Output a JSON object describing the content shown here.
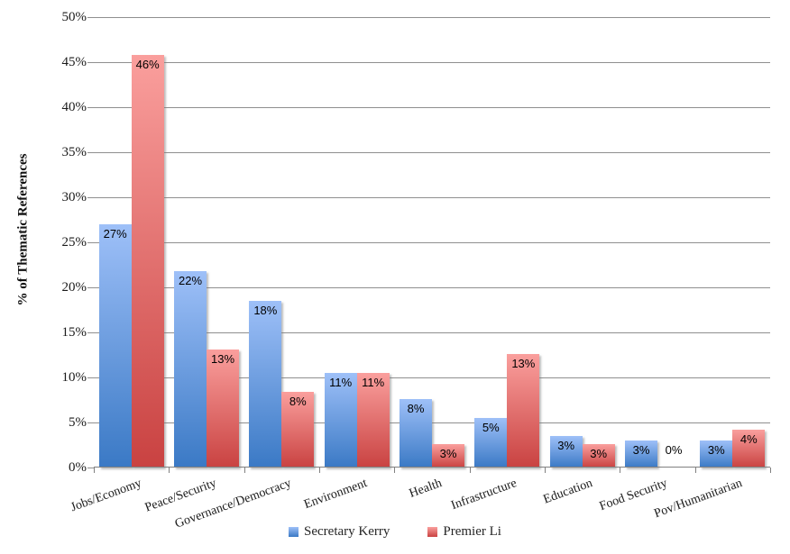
{
  "chart_data": {
    "type": "bar",
    "title": "",
    "xlabel": "",
    "ylabel": "% of Thematic References",
    "ylim": [
      0,
      50
    ],
    "y_tick_step": 5,
    "y_tick_labels": [
      "0%",
      "5%",
      "10%",
      "15%",
      "20%",
      "25%",
      "30%",
      "35%",
      "40%",
      "45%",
      "50%"
    ],
    "grid": true,
    "legend_position": "bottom",
    "categories": [
      "Jobs/Economy",
      "Peace/Security",
      "Governance/Democracy",
      "Environment",
      "Health",
      "Infrastructure",
      "Education",
      "Food Security",
      "Pov/Humanitarian"
    ],
    "series": [
      {
        "name": "Secretary Kerry",
        "color_top": "#9ec0f8",
        "color_bottom": "#3a79c5",
        "values": [
          27,
          21.8,
          18.5,
          10.5,
          7.6,
          5.5,
          3.5,
          3,
          3
        ],
        "labels": [
          "27%",
          "22%",
          "18%",
          "11%",
          "8%",
          "5%",
          "3%",
          "3%",
          "3%"
        ]
      },
      {
        "name": "Premier Li",
        "color_top": "#fa9f9d",
        "color_bottom": "#c94241",
        "values": [
          45.8,
          13.1,
          8.4,
          10.5,
          2.6,
          12.6,
          2.6,
          0,
          4.2
        ],
        "labels": [
          "46%",
          "13%",
          "8%",
          "11%",
          "3%",
          "13%",
          "3%",
          "0%",
          "4%"
        ]
      }
    ]
  },
  "colors": {
    "gridline": "#8f8f8f",
    "axis": "#808080",
    "text": "#1a1a1a"
  }
}
